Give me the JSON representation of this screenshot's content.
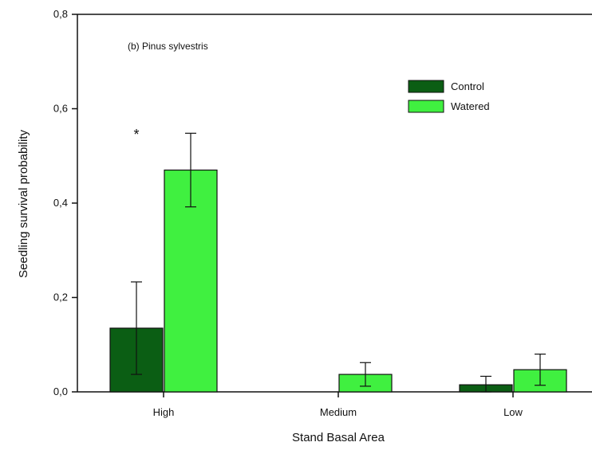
{
  "chart_data": {
    "type": "bar",
    "title": "(b) Pinus sylvestris",
    "xlabel": "Stand Basal Area",
    "ylabel": "Seedling survival probability",
    "ylim": [
      0,
      0.8
    ],
    "yticks": [
      "0,0",
      "0,2",
      "0,4",
      "0,6",
      "0,8"
    ],
    "categories": [
      "High",
      "Medium",
      "Low"
    ],
    "series": [
      {
        "name": "Control",
        "color": "#0b5e14",
        "values": [
          0.135,
          0.0,
          0.015
        ],
        "error": [
          0.098,
          0.0,
          0.018
        ]
      },
      {
        "name": "Watered",
        "color": "#40f040",
        "values": [
          0.47,
          0.037,
          0.047
        ],
        "error": [
          0.078,
          0.025,
          0.033
        ]
      }
    ],
    "annotations": [
      {
        "text": "*",
        "category": "High",
        "y": 0.55
      }
    ],
    "legend_position": "top-right",
    "grid": false
  }
}
